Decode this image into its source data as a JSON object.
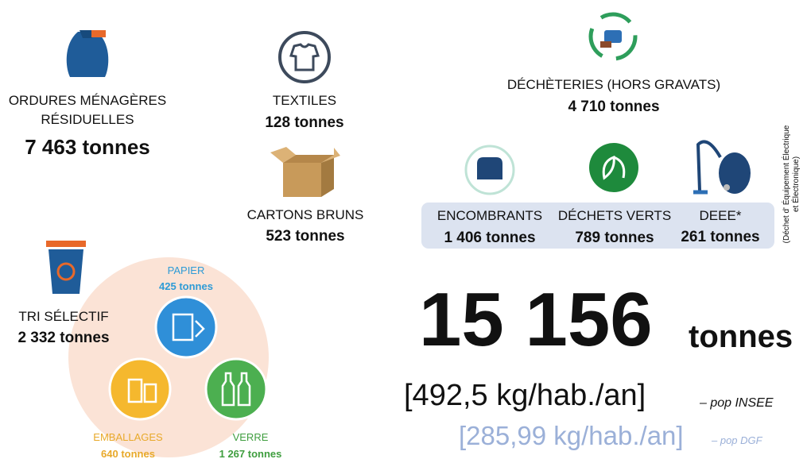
{
  "residual": {
    "label": [
      "ORDURES MÉNAGÈRES",
      "RÉSIDUELLES"
    ],
    "amount": "7 463 tonnes"
  },
  "textiles": {
    "label": "TEXTILES",
    "amount": "128 tonnes"
  },
  "cartons": {
    "label": "CARTONS BRUNS",
    "amount": "523 tonnes"
  },
  "decheteries": {
    "label": "DÉCHÈTERIES (HORS GRAVATS)",
    "amount": "4 710 tonnes",
    "items": [
      {
        "label": "ENCOMBRANTS",
        "amount": "1 406 tonnes"
      },
      {
        "label": "DÉCHETS VERTS",
        "amount": "789 tonnes"
      },
      {
        "label": "DEEE*",
        "amount": "261 tonnes"
      }
    ],
    "footnote": [
      "(Déchet d' Équipement Électrique",
      "et Électronique)"
    ]
  },
  "tri": {
    "label": "TRI SÉLECTIF",
    "amount": "2 332 tonnes",
    "items": [
      {
        "label": "PAPIER",
        "amount": "425 tonnes"
      },
      {
        "label": "EMBALLAGES",
        "amount": "640 tonnes"
      },
      {
        "label": "VERRE",
        "amount": "1 267 tonnes"
      }
    ]
  },
  "total": {
    "number": "15 156",
    "unit": "tonnes"
  },
  "ratios": [
    {
      "value": "[492,5 kg/hab./an]",
      "note": "– pop INSEE"
    },
    {
      "value": "[285,99 kg/hab./an]",
      "note": "– pop DGF"
    }
  ]
}
